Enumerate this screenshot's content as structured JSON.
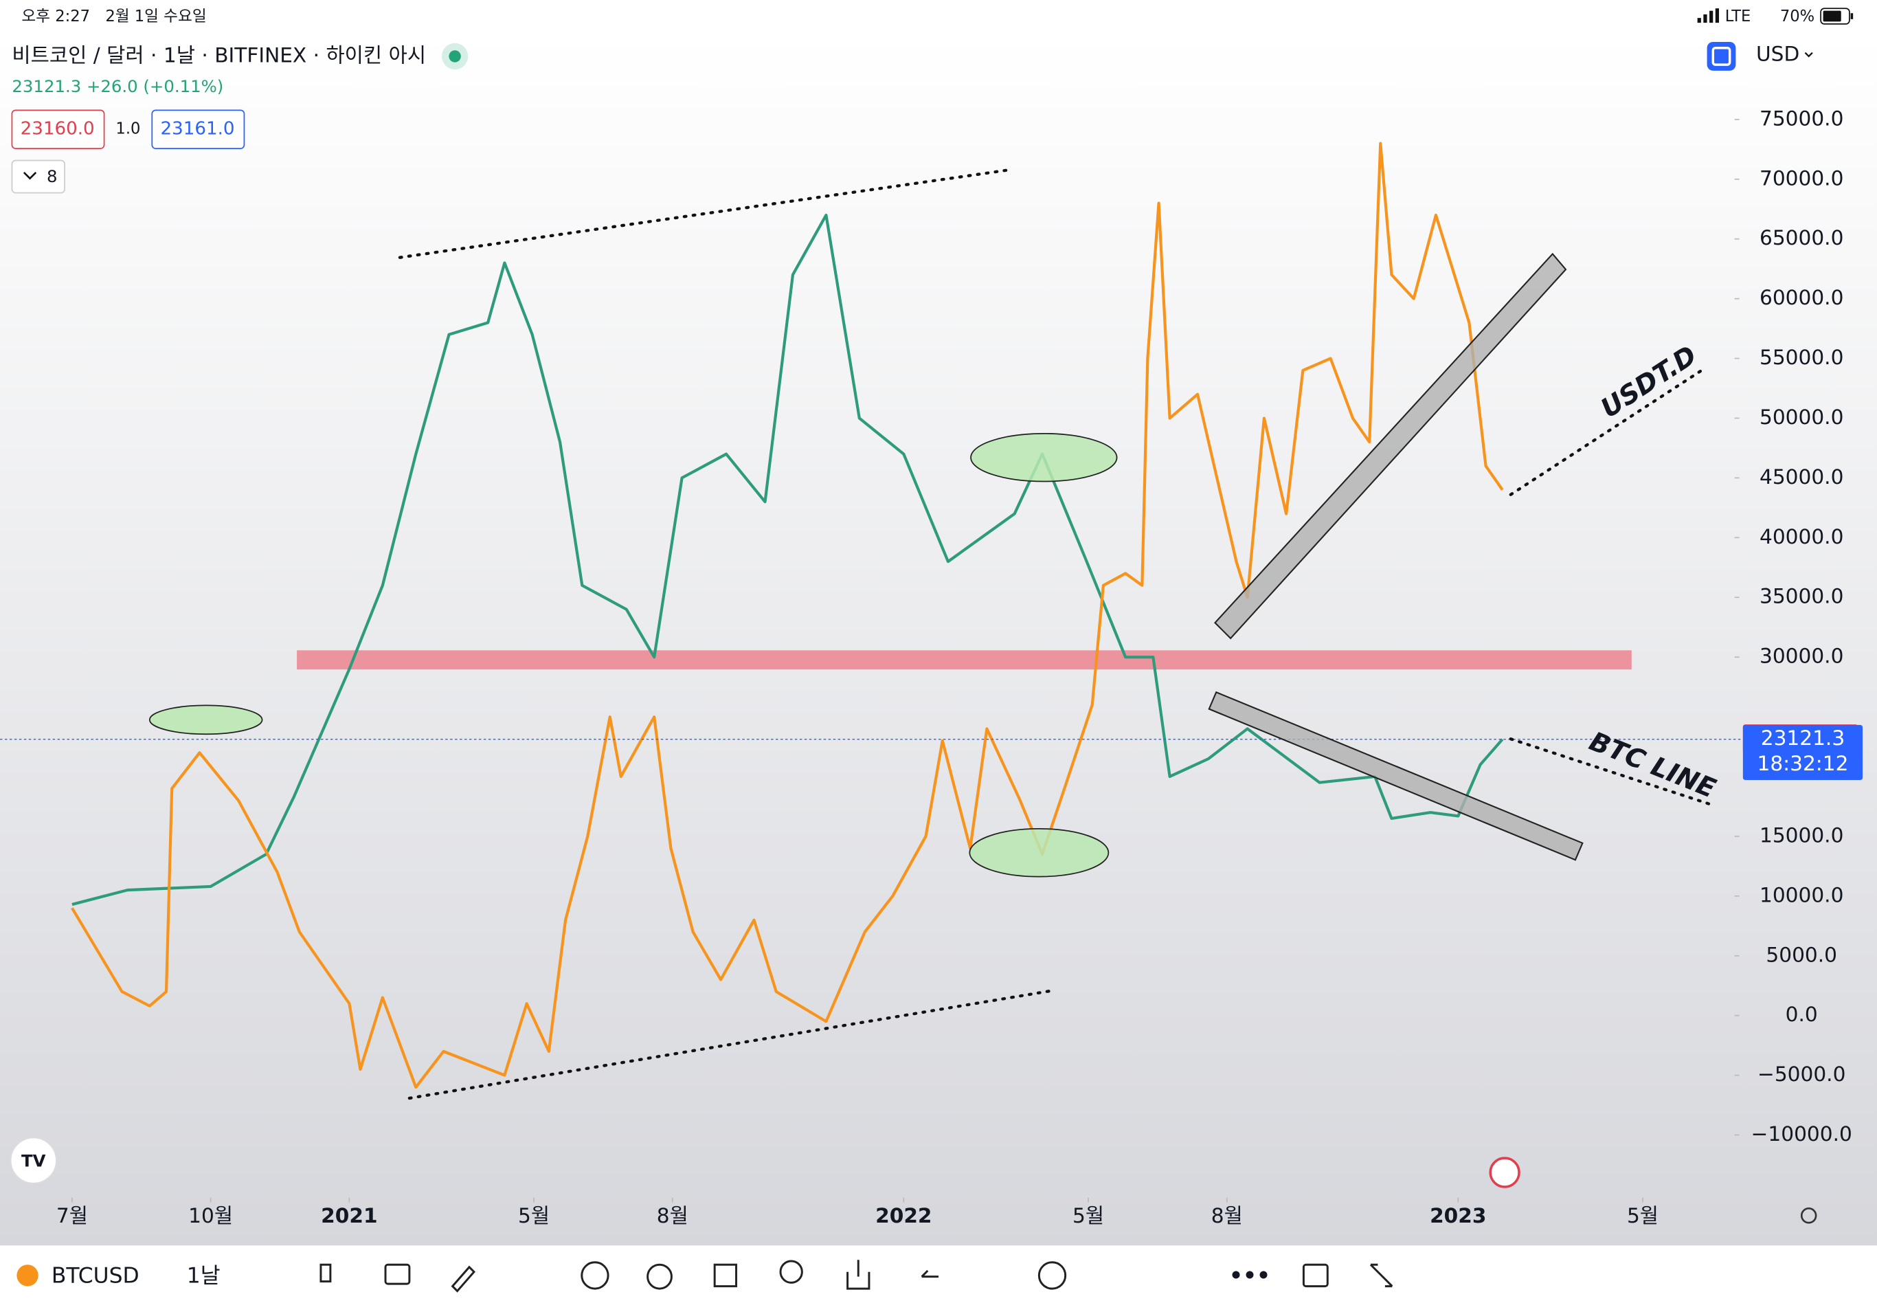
{
  "status_bar": {
    "time": "오후 2:27",
    "date": "2월 1일 수요일",
    "network": "LTE",
    "battery": "70%"
  },
  "header": {
    "symbol_title": "비트코인 / 달러 · 1날 · BITFINEX · 하이킨 아시",
    "currency": "USD",
    "quote": "23121.3 +26.0 (+0.11%)",
    "bid": "23160.0",
    "spread": "1.0",
    "ask": "23161.0",
    "indicators_count": "8"
  },
  "chart_data": {
    "type": "line",
    "xlim": [
      2020.37,
      2023.49
    ],
    "ylim": [
      -15000,
      85000
    ],
    "xticks": [
      {
        "value": 2020.5,
        "label": "7월"
      },
      {
        "value": 2020.75,
        "label": "10월"
      },
      2021,
      {
        "value": 2021.333,
        "label": "5월"
      },
      {
        "value": 2021.583,
        "label": "8월"
      },
      2022,
      {
        "value": 2022.333,
        "label": "5월"
      },
      {
        "value": 2022.583,
        "label": "8월"
      },
      2023,
      {
        "value": 2023.333,
        "label": "5월"
      }
    ],
    "yticks": [
      {
        "value": 75000,
        "label": "75000.0"
      },
      {
        "value": 70000,
        "label": "70000.0"
      },
      {
        "value": 65000,
        "label": "65000.0"
      },
      {
        "value": 60000,
        "label": "60000.0"
      },
      {
        "value": 55000,
        "label": "55000.0"
      },
      {
        "value": 50000,
        "label": "50000.0"
      },
      {
        "value": 45000,
        "label": "45000.0"
      },
      {
        "value": 40000,
        "label": "40000.0"
      },
      {
        "value": 35000,
        "label": "35000.0"
      },
      {
        "value": 30000,
        "label": "30000.0"
      },
      {
        "value": 15000,
        "label": "15000.0"
      },
      {
        "value": 10000,
        "label": "10000.0"
      },
      {
        "value": 5000,
        "label": "5000.0"
      },
      {
        "value": 0,
        "label": "0.0"
      },
      {
        "value": -5000,
        "label": "−5000.0"
      },
      {
        "value": -10000,
        "label": "−10000.0"
      }
    ],
    "series": [
      {
        "name": "BTCUSD",
        "color": "#2e9c7c",
        "x": [
          2020.5,
          2020.6,
          2020.75,
          2020.85,
          2020.9,
          2021.0,
          2021.06,
          2021.12,
          2021.18,
          2021.25,
          2021.28,
          2021.33,
          2021.38,
          2021.42,
          2021.5,
          2021.55,
          2021.6,
          2021.68,
          2021.75,
          2021.8,
          2021.86,
          2021.92,
          2022.0,
          2022.08,
          2022.2,
          2022.25,
          2022.33,
          2022.4,
          2022.45,
          2022.48,
          2022.55,
          2022.62,
          2022.75,
          2022.85,
          2022.88,
          2022.95,
          2023.0,
          2023.04,
          2023.08
        ],
        "values": [
          9300,
          10500,
          10800,
          13500,
          18300,
          29000,
          36000,
          47000,
          57000,
          58000,
          63000,
          57000,
          48000,
          36000,
          34000,
          30000,
          45000,
          47000,
          43000,
          62000,
          67000,
          50000,
          47000,
          38000,
          42000,
          47000,
          38000,
          30000,
          30000,
          20000,
          21500,
          24000,
          19500,
          20000,
          16500,
          17000,
          16700,
          21000,
          23121.3
        ]
      },
      {
        "name": "USDT.D",
        "color": "#f7941d",
        "x": [
          2020.5,
          2020.59,
          2020.64,
          2020.67,
          2020.68,
          2020.73,
          2020.8,
          2020.87,
          2020.91,
          2021.0,
          2021.02,
          2021.06,
          2021.12,
          2021.17,
          2021.28,
          2021.32,
          2021.36,
          2021.39,
          2021.43,
          2021.47,
          2021.49,
          2021.55,
          2021.58,
          2021.62,
          2021.67,
          2021.73,
          2021.77,
          2021.86,
          2021.93,
          2021.98,
          2022.04,
          2022.07,
          2022.12,
          2022.15,
          2022.21,
          2022.25,
          2022.29,
          2022.34,
          2022.36,
          2022.4,
          2022.43,
          2022.44,
          2022.46,
          2022.48,
          2022.53,
          2022.6,
          2022.62,
          2022.65,
          2022.69,
          2022.72,
          2022.77,
          2022.81,
          2022.84,
          2022.86,
          2022.88,
          2022.92,
          2022.96,
          2023.02,
          2023.05,
          2023.08
        ],
        "values": [
          9000,
          2000,
          800,
          2000,
          19000,
          22000,
          18000,
          12000,
          7000,
          1000,
          -4500,
          1500,
          -6000,
          -3000,
          -5000,
          1000,
          -3000,
          8000,
          15000,
          25000,
          20000,
          25000,
          14000,
          7000,
          3000,
          8000,
          2000,
          -500,
          7000,
          10000,
          15000,
          23000,
          14000,
          24000,
          18000,
          13500,
          19000,
          26000,
          36000,
          37000,
          36000,
          55000,
          68000,
          50000,
          52000,
          38000,
          35000,
          50000,
          42000,
          54000,
          55000,
          50000,
          48000,
          73000,
          62000,
          60000,
          67000,
          58000,
          46000,
          44000
        ]
      }
    ],
    "price_lines": {
      "ask": 23161,
      "ask_label": "23161.0",
      "last": 23121.3,
      "last_label": "23121.3",
      "countdown": "18:32:12"
    },
    "annotations": [
      "BTC LINE"
    ]
  },
  "toolbar": {
    "symbol": "BTCUSD",
    "interval": "1날"
  }
}
